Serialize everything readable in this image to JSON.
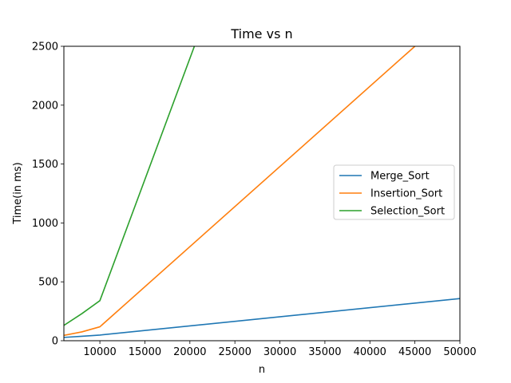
{
  "chart_data": {
    "type": "line",
    "title": "Time vs n",
    "xlabel": "n",
    "ylabel": "Time(in ms)",
    "xlim": [
      6000,
      50000
    ],
    "ylim": [
      0,
      2500
    ],
    "xticks": [
      10000,
      15000,
      20000,
      25000,
      30000,
      35000,
      40000,
      45000,
      50000
    ],
    "yticks": [
      0,
      500,
      1000,
      1500,
      2000,
      2500
    ],
    "grid": false,
    "legend_position": "center-right",
    "series": [
      {
        "name": "Merge_Sort",
        "color": "#1f77b4",
        "x": [
          6000,
          8000,
          10000,
          50000
        ],
        "y": [
          28,
          38,
          48,
          358
        ]
      },
      {
        "name": "Insertion_Sort",
        "color": "#ff7f0e",
        "x": [
          6000,
          8000,
          10000,
          45000,
          50000
        ],
        "y": [
          45,
          75,
          118,
          2500,
          2840
        ]
      },
      {
        "name": "Selection_Sort",
        "color": "#2ca02c",
        "x": [
          6000,
          8000,
          10000,
          20500
        ],
        "y": [
          130,
          230,
          340,
          2500
        ]
      }
    ]
  }
}
